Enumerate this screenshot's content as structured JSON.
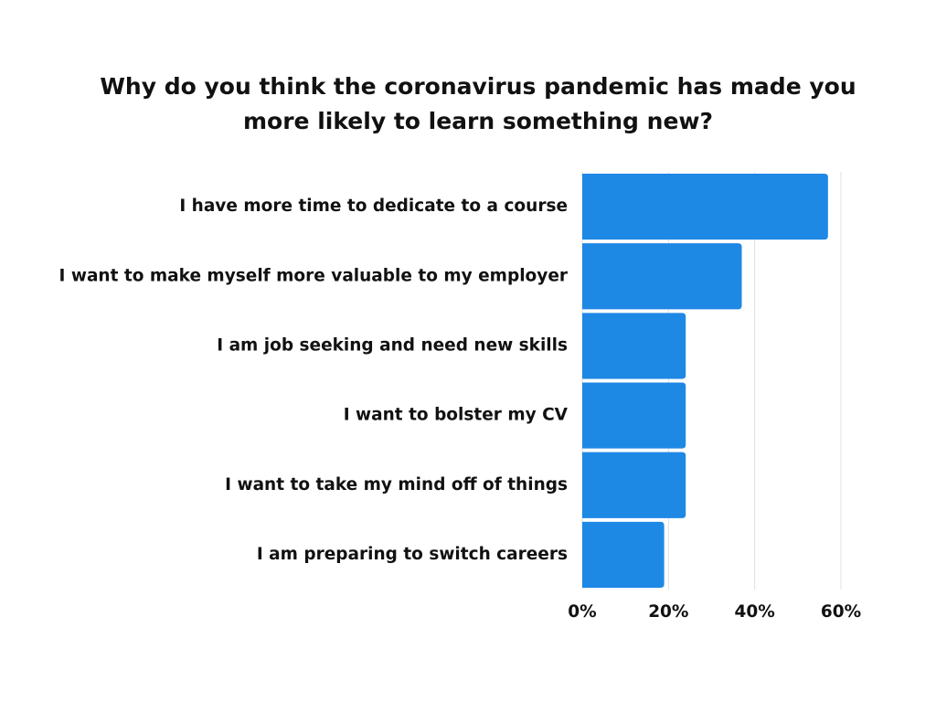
{
  "chart_data": {
    "type": "bar",
    "orientation": "horizontal",
    "title": [
      "Why do you think the coronavirus pandemic has made you",
      "more likely to learn something new?"
    ],
    "categories": [
      "I have more time to dedicate to a course",
      "I want to make myself more valuable to my employer",
      "I am job seeking and need new skills",
      "I want to bolster my CV",
      "I want to take my mind off of things",
      "I am preparing to switch careers"
    ],
    "values": [
      57,
      37,
      24,
      24,
      24,
      19
    ],
    "color": "#1e88e5",
    "xlim": [
      0,
      60
    ],
    "xticks": [
      {
        "value": 0,
        "label": "0%"
      },
      {
        "value": 20,
        "label": "20%"
      },
      {
        "value": 40,
        "label": "40%"
      },
      {
        "value": 60,
        "label": "60%"
      }
    ],
    "grid": true
  }
}
